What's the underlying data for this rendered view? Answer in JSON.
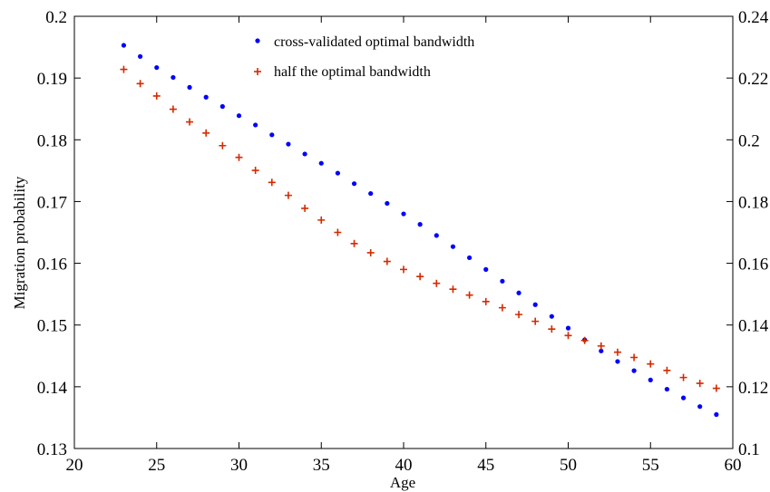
{
  "chart_data": {
    "type": "scatter",
    "title": "",
    "xlabel": "Age",
    "ylabel": "Migration probability",
    "xlim": [
      20,
      60
    ],
    "ylim": [
      0.13,
      0.2
    ],
    "y2lim": [
      0.1,
      0.24
    ],
    "xticks": [
      "20",
      "25",
      "30",
      "35",
      "40",
      "45",
      "50",
      "55",
      "60"
    ],
    "yticks": [
      "0.13",
      "0.14",
      "0.15",
      "0.16",
      "0.17",
      "0.18",
      "0.19",
      "0.2"
    ],
    "y2ticks": [
      "0.1",
      "0.12",
      "0.14",
      "0.16",
      "0.18",
      "0.2",
      "0.22",
      "0.24"
    ],
    "grid": false,
    "legend_position": "top-center",
    "series": [
      {
        "name": "cross-validated optimal bandwidth",
        "axis": "left",
        "marker": "dot",
        "color": "#0000ff",
        "x": [
          23,
          24,
          25,
          26,
          27,
          28,
          29,
          30,
          31,
          32,
          33,
          34,
          35,
          36,
          37,
          38,
          39,
          40,
          41,
          42,
          43,
          44,
          45,
          46,
          47,
          48,
          49,
          50,
          51,
          52,
          53,
          54,
          55,
          56,
          57,
          58,
          59
        ],
        "y": [
          0.1953,
          0.1935,
          0.1917,
          0.1901,
          0.1885,
          0.1869,
          0.1854,
          0.1839,
          0.1824,
          0.1808,
          0.1793,
          0.1777,
          0.1762,
          0.1746,
          0.1729,
          0.1713,
          0.1697,
          0.168,
          0.1663,
          0.1645,
          0.1627,
          0.1609,
          0.159,
          0.1571,
          0.1552,
          0.1533,
          0.1514,
          0.1495,
          0.1476,
          0.1458,
          0.1441,
          0.1426,
          0.1411,
          0.1396,
          0.1382,
          0.1368,
          0.1355
        ]
      },
      {
        "name": "half the optimal bandwidth",
        "axis": "right",
        "marker": "plus",
        "color": "#d42a00",
        "x": [
          23,
          24,
          25,
          26,
          27,
          28,
          29,
          30,
          31,
          32,
          33,
          34,
          35,
          36,
          37,
          38,
          39,
          40,
          41,
          42,
          43,
          44,
          45,
          46,
          47,
          48,
          49,
          50,
          51,
          52,
          53,
          54,
          55,
          56,
          57,
          58,
          59
        ],
        "y": [
          0.2228,
          0.2182,
          0.2142,
          0.2099,
          0.2058,
          0.2022,
          0.1981,
          0.1943,
          0.1901,
          0.1862,
          0.182,
          0.1778,
          0.174,
          0.17,
          0.1664,
          0.1634,
          0.1606,
          0.158,
          0.1557,
          0.1535,
          0.1516,
          0.1497,
          0.1476,
          0.1456,
          0.1434,
          0.1412,
          0.1387,
          0.1366,
          0.135,
          0.1332,
          0.1312,
          0.1295,
          0.1274,
          0.1253,
          0.123,
          0.1211,
          0.1195
        ]
      }
    ]
  }
}
